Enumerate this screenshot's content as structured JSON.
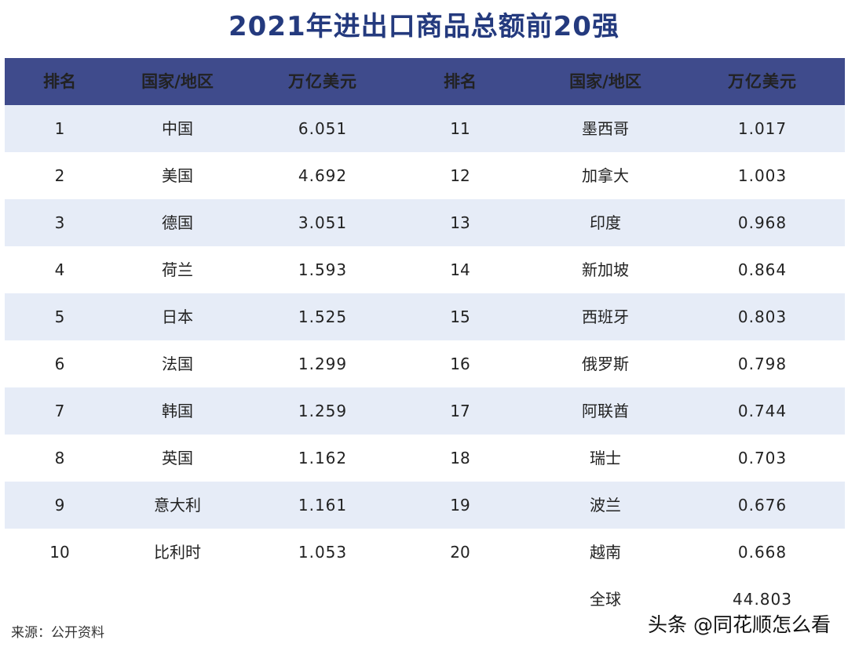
{
  "title": "2021年进出口商品总额前20强",
  "header": {
    "rank": "排名",
    "region": "国家/地区",
    "value": "万亿美元"
  },
  "chart_data": {
    "type": "table",
    "title": "2021年进出口商品总额前20强",
    "columns": [
      "排名",
      "国家/地区",
      "万亿美元",
      "排名",
      "国家/地区",
      "万亿美元"
    ],
    "rows": [
      [
        "1",
        "中国",
        "6.051",
        "11",
        "墨西哥",
        "1.017"
      ],
      [
        "2",
        "美国",
        "4.692",
        "12",
        "加拿大",
        "1.003"
      ],
      [
        "3",
        "德国",
        "3.051",
        "13",
        "印度",
        "0.968"
      ],
      [
        "4",
        "荷兰",
        "1.593",
        "14",
        "新加坡",
        "0.864"
      ],
      [
        "5",
        "日本",
        "1.525",
        "15",
        "西班牙",
        "0.803"
      ],
      [
        "6",
        "法国",
        "1.299",
        "16",
        "俄罗斯",
        "0.798"
      ],
      [
        "7",
        "韩国",
        "1.259",
        "17",
        "阿联酋",
        "0.744"
      ],
      [
        "8",
        "英国",
        "1.162",
        "18",
        "瑞士",
        "0.703"
      ],
      [
        "9",
        "意大利",
        "1.161",
        "19",
        "波兰",
        "0.676"
      ],
      [
        "10",
        "比利时",
        "1.053",
        "20",
        "越南",
        "0.668"
      ]
    ],
    "total": {
      "label": "全球",
      "value": "44.803"
    }
  },
  "source": "来源：公开资料",
  "watermark": "头条 @同花顺怎么看",
  "colors": {
    "header_bg": "#3f4b8c",
    "title": "#243a7e",
    "row_shade": "#e6ecf7"
  }
}
